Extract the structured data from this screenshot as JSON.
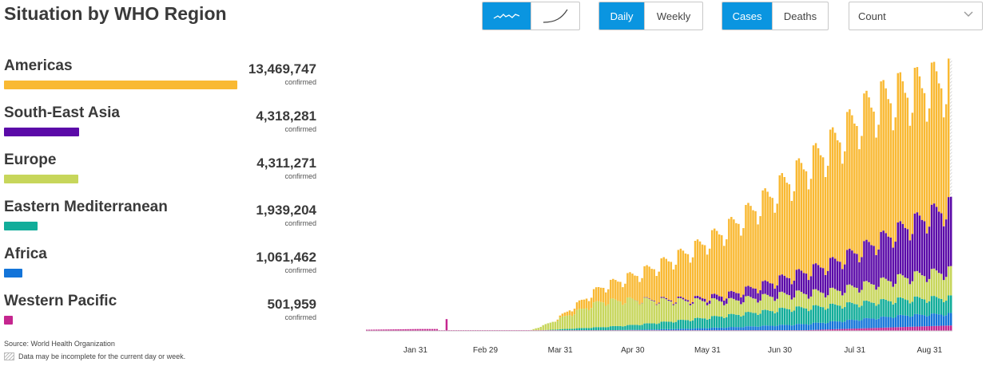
{
  "title": "Situation by WHO Region",
  "controls": {
    "chart_style": [
      {
        "name": "bar-style-button",
        "icon": "bars-sparkline-icon",
        "active": true
      },
      {
        "name": "cumulative-style-button",
        "icon": "curve-icon",
        "active": false
      }
    ],
    "period": [
      {
        "label": "Daily",
        "active": true
      },
      {
        "label": "Weekly",
        "active": false
      }
    ],
    "metric": [
      {
        "label": "Cases",
        "active": true
      },
      {
        "label": "Deaths",
        "active": false
      }
    ],
    "scale_select": {
      "value": "Count",
      "icon": "chevron-down-icon"
    }
  },
  "regions": [
    {
      "name": "Americas",
      "count": "13,469,747",
      "unit": "confirmed",
      "color": "#f9b933",
      "share": 1.0
    },
    {
      "name": "South-East Asia",
      "count": "4,318,281",
      "unit": "confirmed",
      "color": "#5b0aa8",
      "share": 0.3206
    },
    {
      "name": "Europe",
      "count": "4,311,271",
      "unit": "confirmed",
      "color": "#c7d65b",
      "share": 0.3201
    },
    {
      "name": "Eastern Mediterranean",
      "count": "1,939,204",
      "unit": "confirmed",
      "color": "#12ad9a",
      "share": 0.144
    },
    {
      "name": "Africa",
      "count": "1,061,462",
      "unit": "confirmed",
      "color": "#1374d9",
      "share": 0.0788
    },
    {
      "name": "Western Pacific",
      "count": "501,959",
      "unit": "confirmed",
      "color": "#c5268f",
      "share": 0.0373
    }
  ],
  "source": "Source: World Health Organization",
  "note": "Data may be incomplete for the current day or week.",
  "chart_data": {
    "type": "bar",
    "stacked": true,
    "x_tick_labels": [
      "Jan 31",
      "Feb 29",
      "Mar 31",
      "Apr 30",
      "May 31",
      "Jun 30",
      "Jul 31",
      "Aug 31"
    ],
    "x_start": "2020-01-11",
    "x_end": "2020-09-09",
    "series_order": [
      "Western Pacific",
      "Africa",
      "Eastern Mediterranean",
      "Europe",
      "South-East Asia",
      "Americas"
    ],
    "series_colors": [
      "#c5268f",
      "#1374d9",
      "#12ad9a",
      "#c7d65b",
      "#5b0aa8",
      "#f9b933"
    ],
    "approx_daily_peak_total": 340000,
    "last_day_incomplete": true,
    "grid": false,
    "y_axis_shown": false
  }
}
